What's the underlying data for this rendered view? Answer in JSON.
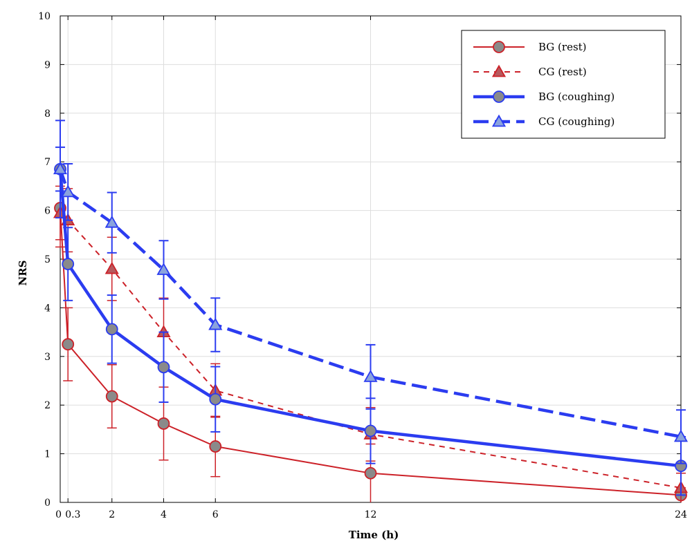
{
  "chart_data": {
    "type": "line",
    "title": "",
    "xlabel": "Time (h)",
    "ylabel": "NRS",
    "xlim": [
      0,
      24
    ],
    "ylim": [
      0,
      10
    ],
    "x_ticks": [
      0,
      0.3,
      2,
      4,
      6,
      12,
      24
    ],
    "x_tick_labels": [
      "0",
      "0.3",
      "2",
      "4",
      "6",
      "12",
      "24"
    ],
    "y_ticks": [
      0,
      1,
      2,
      3,
      4,
      5,
      6,
      7,
      8,
      9,
      10
    ],
    "grid": true,
    "legend_position": "top-right",
    "series": [
      {
        "name": "BG (rest)",
        "color": "#cc2128",
        "style": "solid",
        "marker": "circle",
        "x": [
          0,
          0.3,
          2,
          4,
          6,
          12,
          24
        ],
        "y": [
          6.05,
          3.25,
          2.18,
          1.62,
          1.15,
          0.6,
          0.15
        ],
        "err": [
          0.8,
          0.75,
          0.65,
          0.75,
          0.62,
          0.6,
          0.15
        ]
      },
      {
        "name": "CG (rest)",
        "color": "#cc2128",
        "style": "dashed",
        "marker": "triangle",
        "x": [
          0,
          0.3,
          2,
          4,
          6,
          12,
          24
        ],
        "y": [
          5.95,
          5.8,
          4.8,
          3.5,
          2.3,
          1.4,
          0.3
        ],
        "err": [
          0.55,
          0.65,
          0.65,
          0.7,
          0.55,
          0.55,
          0.3
        ]
      },
      {
        "name": "BG (coughing)",
        "color": "#2b3cf0",
        "style": "solid",
        "marker": "circle",
        "x": [
          0,
          0.3,
          2,
          4,
          6,
          12,
          24
        ],
        "y": [
          6.85,
          4.9,
          3.56,
          2.78,
          2.12,
          1.47,
          0.75
        ],
        "err": [
          0.45,
          0.75,
          0.7,
          0.72,
          0.67,
          0.67,
          0.6
        ]
      },
      {
        "name": "CG (coughing)",
        "color": "#2b3cf0",
        "style": "dashed",
        "marker": "triangle",
        "x": [
          0,
          0.3,
          2,
          4,
          6,
          12,
          24
        ],
        "y": [
          6.85,
          6.38,
          5.75,
          4.78,
          3.65,
          2.58,
          1.35
        ],
        "err": [
          1.0,
          0.58,
          0.62,
          0.6,
          0.55,
          0.66,
          0.55
        ]
      }
    ]
  }
}
